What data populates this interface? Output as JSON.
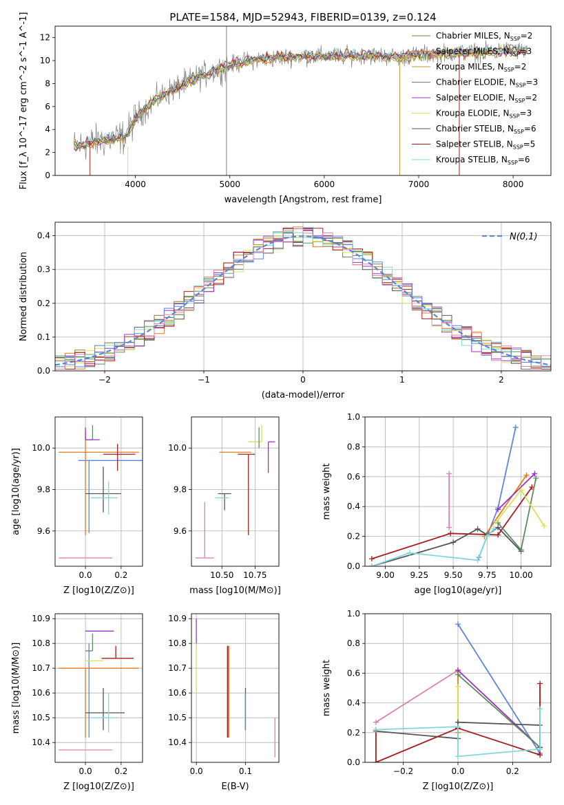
{
  "title": "PLATE=1584, MJD=52943, FIBERID=0139, z=0.124",
  "colors": {
    "Chabrier MILES": "#8c7a2e",
    "Salpeter MILES": "#e07b20",
    "Kroupa MILES": "#b89a3a",
    "Chabrier ELODIE": "#5f8a5f",
    "Salpeter ELODIE": "#9b30c8",
    "Kroupa ELODIE": "#d6e25a",
    "Chabrier STELIB": "#555555",
    "Salpeter STELIB": "#a81c1c",
    "Kroupa STELIB": "#7fd8d8",
    "blue": "#5b86d6",
    "pink": "#e07fb4",
    "data": "#808080",
    "normal": "#5b86d6"
  },
  "chart_data": [
    {
      "type": "line",
      "title": "PLATE=1584, MJD=52943, FIBERID=0139, z=0.124",
      "xlabel": "wavelength [Angstrom, rest frame]",
      "ylabel": "Flux [f_λ 10^-17 erg cm^-2 s^-1 A^-1]",
      "xlim": [
        3150,
        8400
      ],
      "ylim": [
        0,
        13
      ],
      "xticks": [
        "4000",
        "5000",
        "6000",
        "7000",
        "8000"
      ],
      "yticks": [
        "0",
        "2",
        "4",
        "6",
        "8",
        "10",
        "12"
      ],
      "legend": [
        {
          "label": "Chabrier MILES, N",
          "sub": "SSP",
          "suffix": "=2",
          "color": "#8c7a2e"
        },
        {
          "label": "Salpeter MILES, N",
          "sub": "SSP",
          "suffix": "=3",
          "color": "#e07b20"
        },
        {
          "label": "Kroupa MILES, N",
          "sub": "SSP",
          "suffix": "=2",
          "color": "#b89a3a"
        },
        {
          "label": "Chabrier ELODIE, N",
          "sub": "SSP",
          "suffix": "=3",
          "color": "#5f8a5f"
        },
        {
          "label": "Salpeter ELODIE, N",
          "sub": "SSP",
          "suffix": "=2",
          "color": "#9b30c8"
        },
        {
          "label": "Kroupa ELODIE, N",
          "sub": "SSP",
          "suffix": "=3",
          "color": "#d6e25a"
        },
        {
          "label": "Chabrier STELIB, N",
          "sub": "SSP",
          "suffix": "=6",
          "color": "#555555"
        },
        {
          "label": "Salpeter STELIB, N",
          "sub": "SSP",
          "suffix": "=5",
          "color": "#a81c1c"
        },
        {
          "label": "Kroupa STELIB, N",
          "sub": "SSP",
          "suffix": "=6",
          "color": "#7fd8d8"
        }
      ],
      "continuum": [
        [
          3350,
          2.5
        ],
        [
          3500,
          2.8
        ],
        [
          3700,
          3.1
        ],
        [
          3900,
          3.4
        ],
        [
          4000,
          5.0
        ],
        [
          4200,
          6.5
        ],
        [
          4400,
          7.5
        ],
        [
          4600,
          8.3
        ],
        [
          4800,
          9.0
        ],
        [
          5000,
          9.6
        ],
        [
          5200,
          10.0
        ],
        [
          5400,
          10.2
        ],
        [
          5600,
          10.3
        ],
        [
          5800,
          10.4
        ],
        [
          6000,
          10.4
        ],
        [
          6200,
          10.4
        ],
        [
          6400,
          10.5
        ],
        [
          6600,
          10.4
        ],
        [
          6800,
          10.3
        ],
        [
          7000,
          10.5
        ],
        [
          7200,
          10.6
        ],
        [
          7400,
          10.7
        ],
        [
          7600,
          10.7
        ],
        [
          7800,
          10.8
        ],
        [
          8000,
          10.9
        ],
        [
          8150,
          10.8
        ]
      ]
    },
    {
      "type": "bar",
      "xlabel": "(data-model)/error",
      "ylabel": "Normed distribution",
      "xlim": [
        -2.5,
        2.5
      ],
      "ylim": [
        0,
        0.44
      ],
      "xticks": [
        "−2",
        "−1",
        "0",
        "1",
        "2"
      ],
      "yticks": [
        "0.0",
        "0.1",
        "0.2",
        "0.3",
        "0.4"
      ],
      "legend": "N(0,1)",
      "legend_position": "top-right",
      "bin_width": 0.1,
      "series_colors": [
        "#8c7a2e",
        "#e07b20",
        "#5f8a5f",
        "#9b30c8",
        "#d6e25a",
        "#555555",
        "#a81c1c",
        "#7fd8d8",
        "#5b86d6",
        "#e07fb4"
      ]
    },
    {
      "type": "scatter",
      "xlabel": "Z [log10(Z/Z⊙)]",
      "ylabel": "age [log10(age/yr)]",
      "xlim": [
        -0.17,
        0.32
      ],
      "ylim": [
        9.43,
        10.15
      ],
      "xticks": [
        "0.0",
        "0.2"
      ],
      "yticks": [
        "9.6",
        "9.8",
        "10.0"
      ],
      "points": [
        {
          "x": 0.0,
          "y": 9.47,
          "xerr": [
            0.15,
            0.15
          ],
          "yerr": [
            0.0,
            0.0
          ],
          "color": "#e07fb4"
        },
        {
          "x": 0.02,
          "y": 9.94,
          "xerr": [
            0.06,
            0.31
          ],
          "yerr": [
            0.35,
            0.0
          ],
          "color": "#5b86d6"
        },
        {
          "x": 0.0,
          "y": 9.98,
          "xerr": [
            0.15,
            0.3
          ],
          "yerr": [
            0.4,
            0.1
          ],
          "color": "#e07b20"
        },
        {
          "x": 0.18,
          "y": 9.97,
          "xerr": [
            0.08,
            0.1
          ],
          "yerr": [
            0.08,
            0.05
          ],
          "color": "#a81c1c"
        },
        {
          "x": 0.1,
          "y": 9.78,
          "xerr": [
            0.1,
            0.1
          ],
          "yerr": [
            0.09,
            0.13
          ],
          "color": "#555555"
        },
        {
          "x": 0.13,
          "y": 9.76,
          "xerr": [
            0.1,
            0.05
          ],
          "yerr": [
            0.08,
            0.08
          ],
          "color": "#7fd8d8"
        },
        {
          "x": 0.04,
          "y": 10.04,
          "xerr": [
            0.04,
            0.0
          ],
          "yerr": [
            0.0,
            0.07
          ],
          "color": "#5f8a5f"
        },
        {
          "x": 0.0,
          "y": 10.04,
          "xerr": [
            0.0,
            0.08
          ],
          "yerr": [
            0.0,
            0.06
          ],
          "color": "#9b30c8"
        }
      ]
    },
    {
      "type": "scatter",
      "xlabel": "mass [log10(M/M⊙)]",
      "xlim": [
        10.27,
        10.93
      ],
      "ylim": [
        9.43,
        10.15
      ],
      "xticks": [
        "10.50",
        "10.75"
      ],
      "yticks": [
        "9.6",
        "9.8",
        "10.0"
      ],
      "points": [
        {
          "x": 10.37,
          "y": 9.47,
          "xerr": [
            0.07,
            0.07
          ],
          "yerr": [
            0.0,
            0.27
          ],
          "color": "#e07fb4"
        },
        {
          "x": 10.6,
          "y": 9.98,
          "xerr": [
            0.12,
            0.12
          ],
          "yerr": [
            0.0,
            0.0
          ],
          "color": "#e07b20"
        },
        {
          "x": 10.7,
          "y": 9.97,
          "xerr": [
            0.08,
            0.05
          ],
          "yerr": [
            0.39,
            0.0
          ],
          "color": "#a81c1c"
        },
        {
          "x": 10.52,
          "y": 9.78,
          "xerr": [
            0.05,
            0.05
          ],
          "yerr": [
            0.08,
            0.0
          ],
          "color": "#555555"
        },
        {
          "x": 10.5,
          "y": 9.76,
          "xerr": [
            0.05,
            0.05
          ],
          "yerr": [
            0.0,
            0.0
          ],
          "color": "#7fd8d8"
        },
        {
          "x": 10.85,
          "y": 10.03,
          "xerr": [
            0.0,
            0.05
          ],
          "yerr": [
            0.15,
            0.0
          ],
          "color": "#9b30c8"
        },
        {
          "x": 10.8,
          "y": 10.03,
          "xerr": [
            0.1,
            0.0
          ],
          "yerr": [
            0.0,
            0.08
          ],
          "color": "#d6e25a"
        },
        {
          "x": 10.78,
          "y": 10.0,
          "xerr": [
            0.0,
            0.0
          ],
          "yerr": [
            0.0,
            0.1
          ],
          "color": "#5f8a5f"
        }
      ]
    },
    {
      "type": "line",
      "xlabel": "age [log10(age/yr)]",
      "ylabel": "mass weight",
      "xlim": [
        8.85,
        10.22
      ],
      "ylim": [
        0,
        1.0
      ],
      "xticks": [
        "9.00",
        "9.25",
        "9.50",
        "9.75",
        "10.00"
      ],
      "yticks": [
        "0.0",
        "0.2",
        "0.4",
        "0.6",
        "0.8",
        "1.0"
      ],
      "series": [
        {
          "color": "#5b86d6",
          "x": [
            9.69,
            9.83,
            9.96
          ],
          "y": [
            0.06,
            0.39,
            0.93
          ]
        },
        {
          "color": "#e07b20",
          "x": [
            9.73,
            10.04
          ],
          "y": [
            0.2,
            0.61
          ]
        },
        {
          "color": "#9b30c8",
          "x": [
            9.83,
            10.1
          ],
          "y": [
            0.38,
            0.62
          ]
        },
        {
          "color": "#a81c1c",
          "x": [
            8.9,
            9.48,
            9.83,
            10.08
          ],
          "y": [
            0.05,
            0.22,
            0.21,
            0.53
          ]
        },
        {
          "color": "#555555",
          "x": [
            8.9,
            9.5,
            9.68,
            9.75,
            9.83,
            10.0
          ],
          "y": [
            0.0,
            0.16,
            0.25,
            0.21,
            0.26,
            0.1
          ]
        },
        {
          "color": "#5f8a5f",
          "x": [
            9.83,
            10.0,
            10.11
          ],
          "y": [
            0.29,
            0.11,
            0.59
          ]
        },
        {
          "color": "#d6e25a",
          "x": [
            9.82,
            10.0,
            10.17
          ],
          "y": [
            0.3,
            0.51,
            0.27
          ]
        },
        {
          "color": "#7fd8d8",
          "x": [
            8.9,
            9.18,
            9.68,
            9.75,
            9.8
          ],
          "y": [
            0.0,
            0.09,
            0.04,
            0.2,
            0.25
          ]
        },
        {
          "color": "#e07fb4",
          "x": [
            9.47,
            9.47
          ],
          "y": [
            0.62,
            0.26
          ]
        }
      ]
    },
    {
      "type": "scatter",
      "xlabel": "Z [log10(Z/Z⊙)]",
      "ylabel": "mass [log10(M/M⊙)]",
      "xlim": [
        -0.17,
        0.32
      ],
      "ylim": [
        10.32,
        10.92
      ],
      "xticks": [
        "0.0",
        "0.2"
      ],
      "yticks": [
        "10.4",
        "10.5",
        "10.6",
        "10.7",
        "10.8",
        "10.9"
      ],
      "points": [
        {
          "x": 0.0,
          "y": 10.37,
          "xerr": [
            0.15,
            0.15
          ],
          "yerr": [
            0.0,
            0.0
          ],
          "color": "#e07fb4"
        },
        {
          "x": 0.02,
          "y": 10.74,
          "xerr": [
            0.0,
            0.0
          ],
          "yerr": [
            0.32,
            0.06
          ],
          "color": "#5b86d6"
        },
        {
          "x": 0.0,
          "y": 10.7,
          "xerr": [
            0.15,
            0.3
          ],
          "yerr": [
            0.28,
            0.0
          ],
          "color": "#e07b20"
        },
        {
          "x": 0.17,
          "y": 10.74,
          "xerr": [
            0.08,
            0.1
          ],
          "yerr": [
            0.0,
            0.05
          ],
          "color": "#a81c1c"
        },
        {
          "x": 0.1,
          "y": 10.52,
          "xerr": [
            0.1,
            0.12
          ],
          "yerr": [
            0.07,
            0.1
          ],
          "color": "#555555"
        },
        {
          "x": 0.13,
          "y": 10.5,
          "xerr": [
            0.1,
            0.05
          ],
          "yerr": [
            0.06,
            0.1
          ],
          "color": "#7fd8d8"
        },
        {
          "x": 0.04,
          "y": 10.77,
          "xerr": [
            0.04,
            0.0
          ],
          "yerr": [
            0.0,
            0.07
          ],
          "color": "#5f8a5f"
        },
        {
          "x": 0.08,
          "y": 10.85,
          "xerr": [
            0.08,
            0.08
          ],
          "yerr": [
            0.0,
            0.0
          ],
          "color": "#9b30c8"
        },
        {
          "x": 0.02,
          "y": 10.73,
          "xerr": [
            0.02,
            0.08
          ],
          "yerr": [
            0.0,
            0.0
          ],
          "color": "#d6e25a"
        }
      ]
    },
    {
      "type": "scatter",
      "xlabel": "E(B-V)",
      "xlim": [
        -0.01,
        0.168
      ],
      "ylim": [
        10.32,
        10.92
      ],
      "xticks": [
        "0.0",
        "0.1"
      ],
      "yticks": [
        "10.4",
        "10.5",
        "10.6",
        "10.7",
        "10.8",
        "10.9"
      ],
      "points": [
        {
          "x": 0.16,
          "y": 10.42,
          "yerr": [
            0.08,
            0.08
          ],
          "color": "#e07fb4"
        },
        {
          "x": 0.063,
          "y": 10.6,
          "yerr": [
            0.18,
            0.19
          ],
          "color": "#5b86d6"
        },
        {
          "x": 0.066,
          "y": 10.6,
          "yerr": [
            0.18,
            0.19
          ],
          "color": "#e07b20"
        },
        {
          "x": 0.064,
          "y": 10.6,
          "yerr": [
            0.18,
            0.19
          ],
          "color": "#a81c1c"
        },
        {
          "x": 0.1,
          "y": 10.54,
          "yerr": [
            0.09,
            0.08
          ],
          "color": "#555555"
        },
        {
          "x": 0.099,
          "y": 10.53,
          "yerr": [
            0.08,
            0.07
          ],
          "color": "#7fd8d8"
        },
        {
          "x": 0.0,
          "y": 10.82,
          "yerr": [
            0.03,
            0.08
          ],
          "color": "#9b30c8"
        },
        {
          "x": 0.0,
          "y": 10.7,
          "yerr": [
            0.1,
            0.1
          ],
          "color": "#d6e25a"
        }
      ]
    },
    {
      "type": "line",
      "xlabel": "Z [log10(Z/Z⊙)]",
      "ylabel": "mass weight",
      "xlim": [
        -0.34,
        0.34
      ],
      "ylim": [
        0,
        1.0
      ],
      "xticks": [
        "−0.2",
        "0.0",
        "0.2"
      ],
      "yticks": [
        "0.0",
        "0.2",
        "0.4",
        "0.6",
        "0.8",
        "1.0"
      ],
      "series": [
        {
          "color": "#5b86d6",
          "x": [
            0.0,
            0.3
          ],
          "y": [
            0.93,
            0.06
          ]
        },
        {
          "color": "#e07fb4",
          "x": [
            -0.3,
            0.0
          ],
          "y": [
            0.27,
            0.62
          ]
        },
        {
          "color": "#e07b20",
          "x": [
            0.0,
            0.0
          ],
          "y": [
            0.61,
            0.2
          ]
        },
        {
          "color": "#9b30c8",
          "x": [
            0.0,
            0.3
          ],
          "y": [
            0.62,
            0.1
          ]
        },
        {
          "color": "#5f8a5f",
          "x": [
            0.0,
            0.3
          ],
          "y": [
            0.59,
            0.1
          ]
        },
        {
          "color": "#d6e25a",
          "x": [
            0.0,
            0.0
          ],
          "y": [
            0.51,
            0.27
          ]
        },
        {
          "color": "#555555",
          "x": [
            -0.3,
            0.0,
            0.0,
            0.3,
            0.3
          ],
          "y": [
            0.21,
            0.16,
            0.27,
            0.25,
            0.1
          ]
        },
        {
          "color": "#a81c1c",
          "x": [
            -0.3,
            -0.3,
            0.0,
            0.3,
            0.3
          ],
          "y": [
            0.22,
            0.0,
            0.23,
            0.05,
            0.53
          ]
        },
        {
          "color": "#7fd8d8",
          "x": [
            -0.3,
            0.0,
            0.0,
            0.3,
            0.3
          ],
          "y": [
            0.22,
            0.24,
            0.04,
            0.09,
            0.36
          ]
        }
      ]
    }
  ]
}
